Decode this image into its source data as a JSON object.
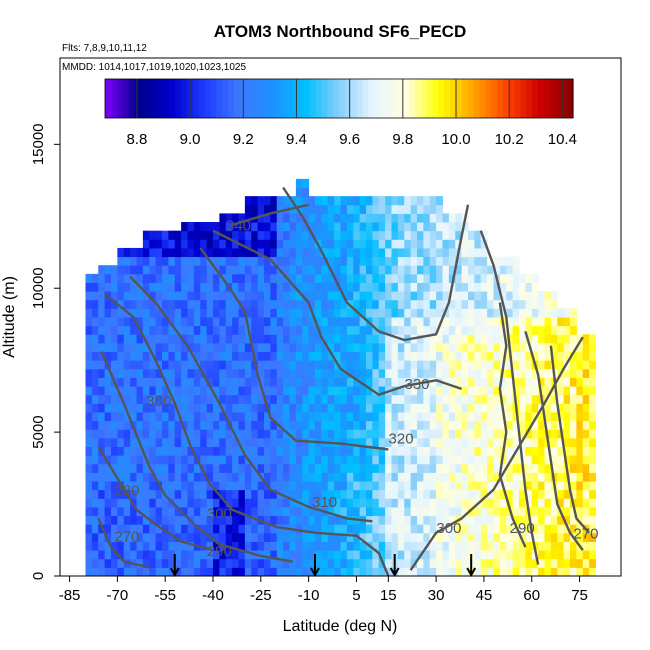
{
  "chart_data": {
    "type": "heatmap",
    "title": "ATOM3 Northbound SF6_PECD",
    "subtitle_flights": "Flts: 7,8,9,10,11,12",
    "subtitle_dates": "MMDD: 1014,1017,1019,1020,1023,1025",
    "xlabel": "Latitude (deg N)",
    "ylabel": "Altitude (m)",
    "xlim": [
      -88,
      88
    ],
    "ylim": [
      0,
      18000
    ],
    "x_ticks": [
      -85,
      -70,
      -55,
      -40,
      -25,
      -10,
      5,
      15,
      30,
      45,
      60,
      75
    ],
    "y_ticks": [
      0,
      5000,
      10000,
      15000
    ],
    "colorbar": {
      "ticks": [
        8.8,
        9.0,
        9.2,
        9.4,
        9.6,
        9.8,
        10.0,
        10.2,
        10.4
      ],
      "range": [
        8.68,
        10.44
      ],
      "colors": [
        "#7f00ff",
        "#00008b",
        "#0000cd",
        "#1e3cff",
        "#3c78ff",
        "#1e90ff",
        "#00bfff",
        "#87cefa",
        "#e6f5ff",
        "#ffffe0",
        "#ffff00",
        "#ffa500",
        "#ff4500",
        "#cc0000",
        "#8b0000"
      ]
    },
    "contour_labels": [
      {
        "label": "340",
        "x": -32,
        "y": 12000
      },
      {
        "label": "330",
        "x": 24,
        "y": 6500
      },
      {
        "label": "320",
        "x": 19,
        "y": 4600
      },
      {
        "label": "310",
        "x": -5,
        "y": 2400
      },
      {
        "label": "300",
        "x": -57,
        "y": 5900
      },
      {
        "label": "300",
        "x": -38,
        "y": 2000
      },
      {
        "label": "300",
        "x": 34,
        "y": 1500
      },
      {
        "label": "290",
        "x": -38,
        "y": 700
      },
      {
        "label": "290",
        "x": 57,
        "y": 1500
      },
      {
        "label": "280",
        "x": -67,
        "y": 2800
      },
      {
        "label": "270",
        "x": -67,
        "y": 1200
      },
      {
        "label": "270",
        "x": 77,
        "y": 1300
      }
    ],
    "flight_markers_lat": [
      -52,
      -8,
      17,
      41
    ]
  }
}
